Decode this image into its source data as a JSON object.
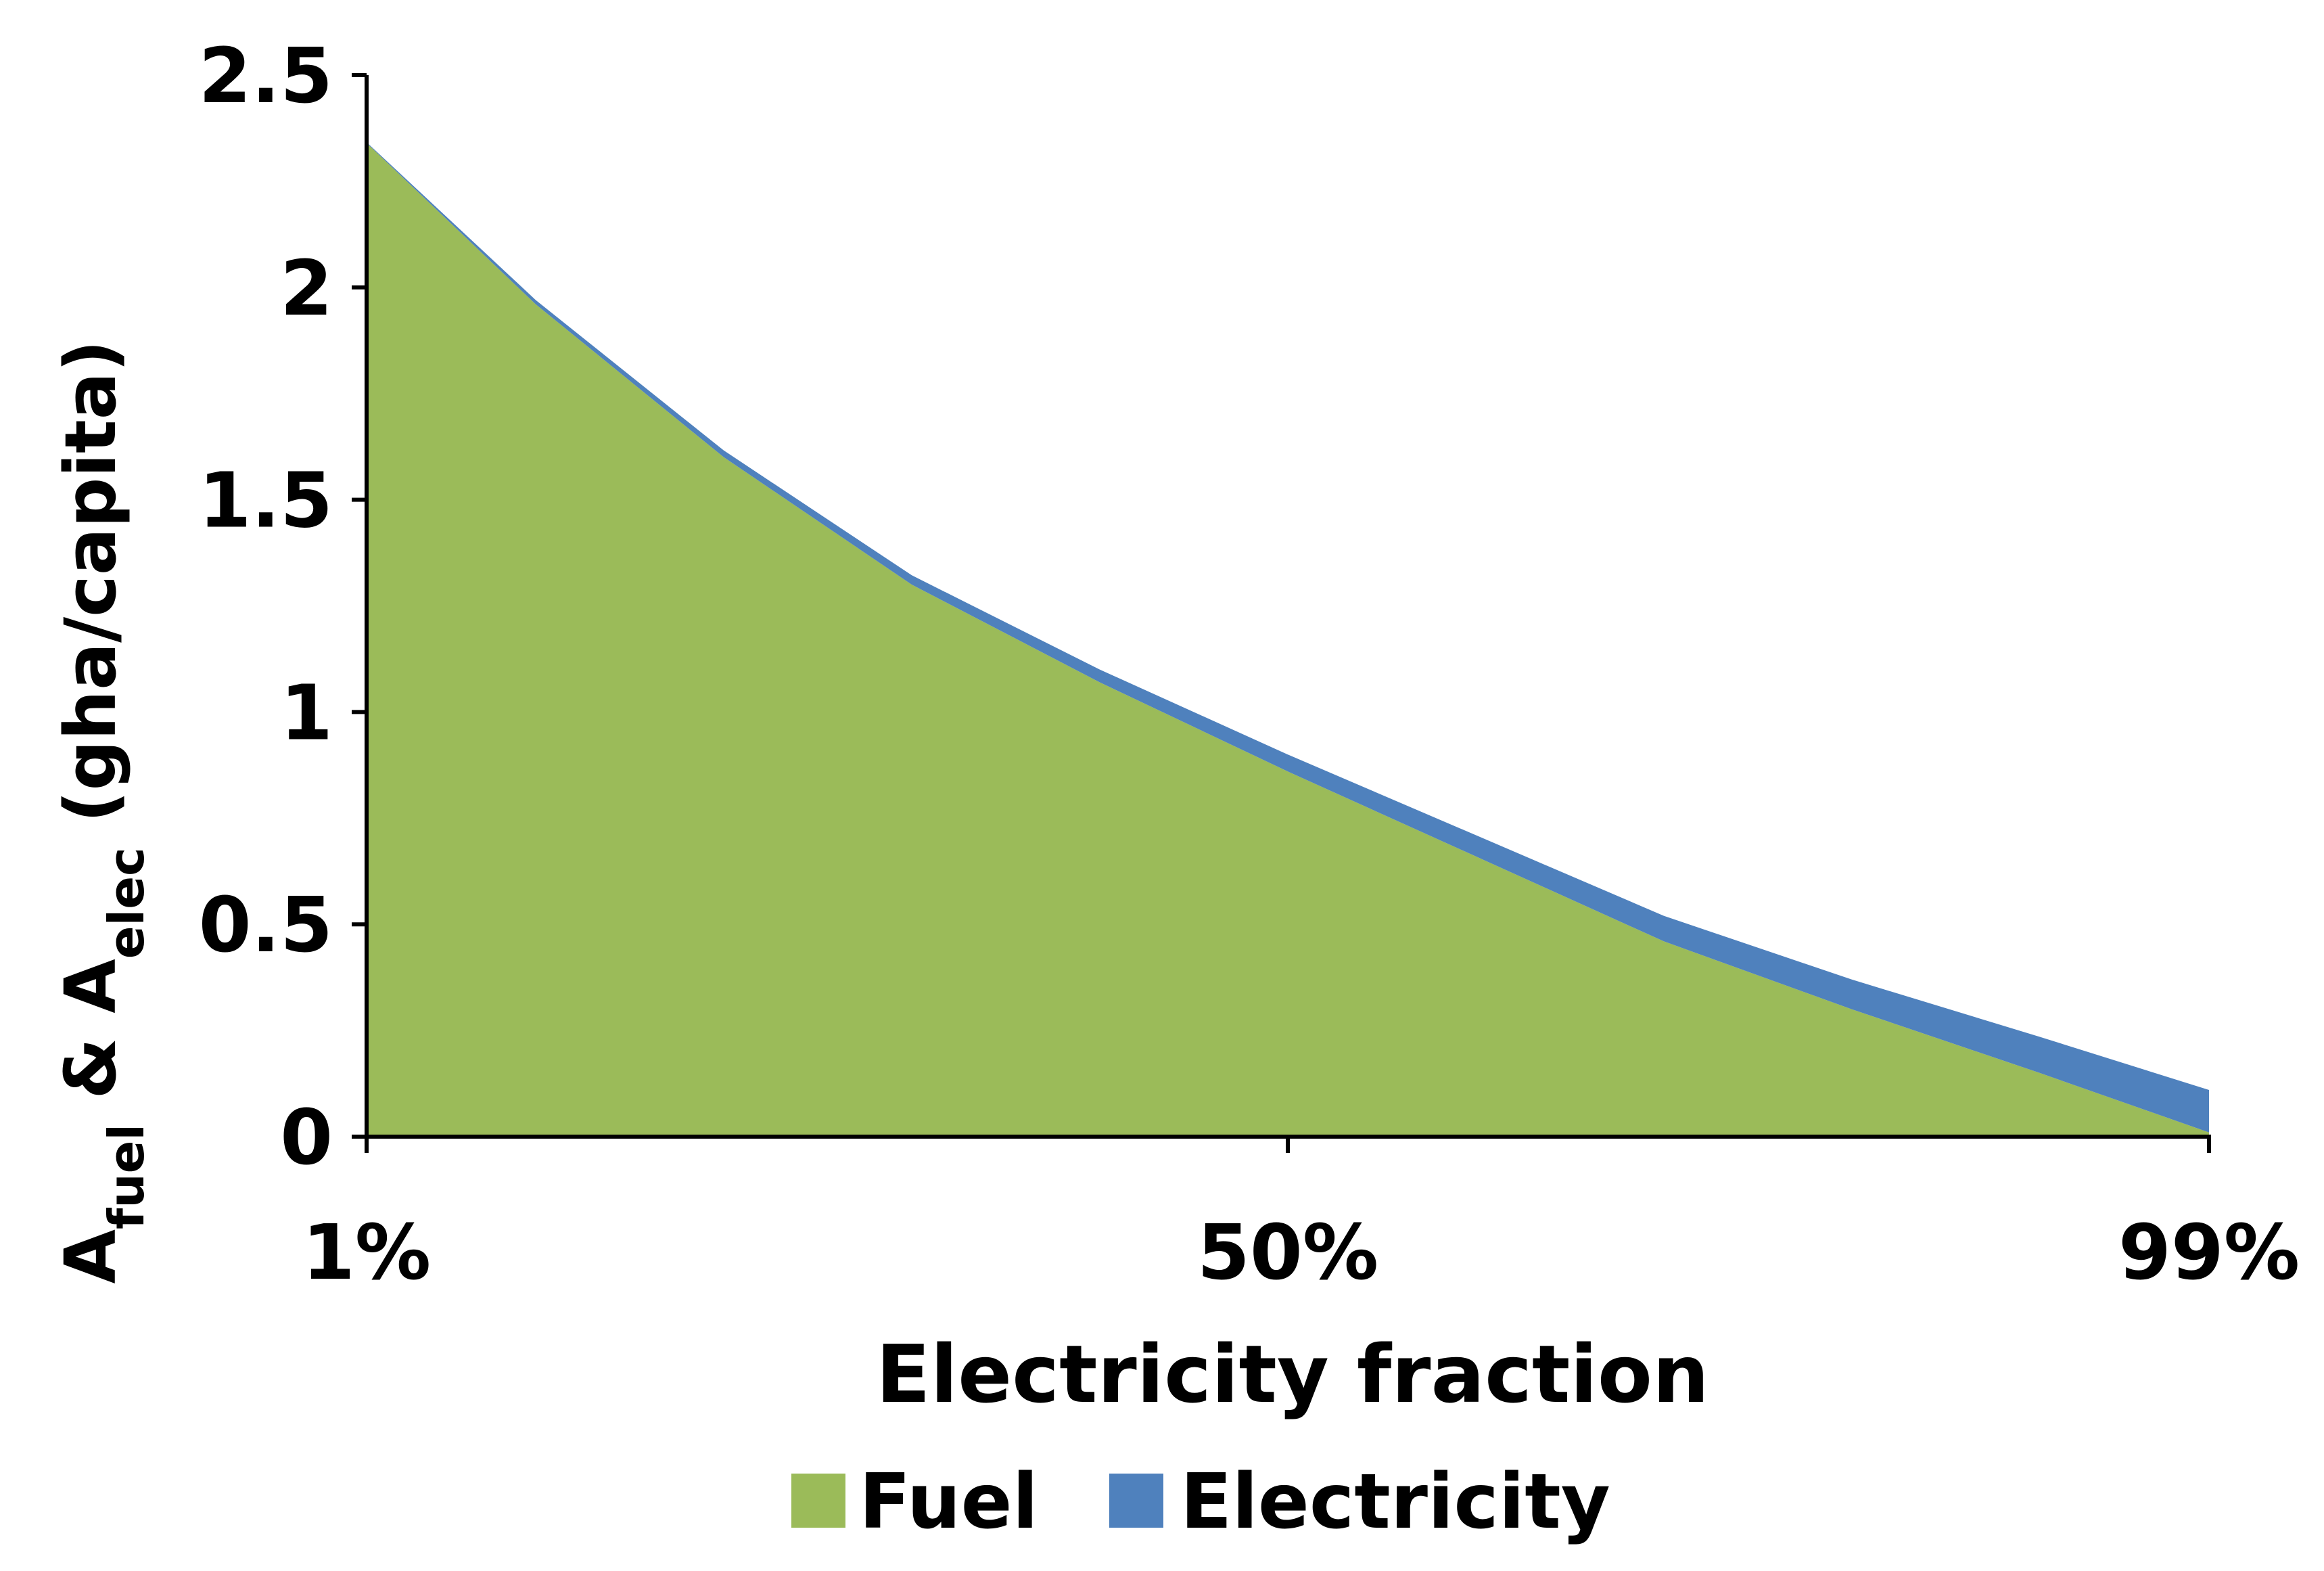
{
  "chart_data": {
    "type": "area",
    "stacked": true,
    "xlabel": "Electricity fraction",
    "ylabel": {
      "parts": [
        {
          "base": "A",
          "sub": "fuel"
        },
        {
          "text": " & "
        },
        {
          "base": "A",
          "sub": "elec"
        },
        {
          "text": " (gha/capita)"
        }
      ]
    },
    "x_ticks": [
      {
        "x": 0.01,
        "label": "1%"
      },
      {
        "x": 0.5,
        "label": "50%"
      },
      {
        "x": 0.99,
        "label": "99%"
      }
    ],
    "y_ticks": [
      {
        "y": 0,
        "label": "0"
      },
      {
        "y": 0.5,
        "label": "0.5"
      },
      {
        "y": 1,
        "label": "1"
      },
      {
        "y": 1.5,
        "label": "1.5"
      },
      {
        "y": 2,
        "label": "2"
      },
      {
        "y": 2.5,
        "label": "2.5"
      }
    ],
    "xlim": [
      0.01,
      0.99
    ],
    "ylim": [
      0,
      2.5
    ],
    "grid": false,
    "legend_position": "bottom-center",
    "x": [
      0.01,
      0.1,
      0.2,
      0.3,
      0.4,
      0.5,
      0.6,
      0.7,
      0.8,
      0.9,
      0.99
    ],
    "series": [
      {
        "name": "Fuel",
        "color": "#9bbb59",
        "values": [
          2.34,
          1.96,
          1.6,
          1.3,
          1.07,
          0.86,
          0.66,
          0.46,
          0.3,
          0.15,
          0.01
        ]
      },
      {
        "name": "Electricity",
        "color": "#4f81bd",
        "values": [
          0.002,
          0.01,
          0.016,
          0.022,
          0.03,
          0.04,
          0.05,
          0.06,
          0.07,
          0.085,
          0.1
        ]
      }
    ]
  }
}
